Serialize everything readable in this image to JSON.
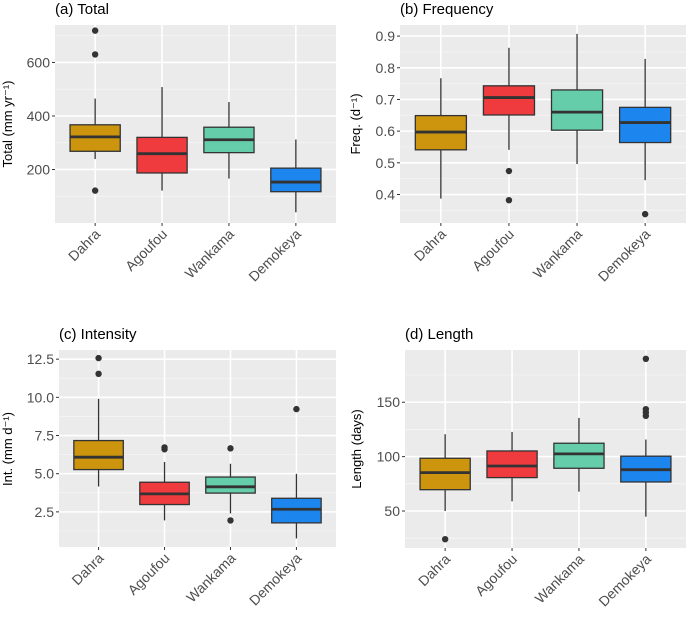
{
  "chart_data": [
    {
      "type": "boxplot",
      "title": "(a) Total",
      "xlabel": "",
      "ylabel": "Total (mm yr⁻¹)",
      "categories": [
        "Dahra",
        "Agoufou",
        "Wankama",
        "Demokeya"
      ],
      "colors": [
        "#CC950D",
        "#EF3B3E",
        "#66CDAA",
        "#1C86EE"
      ],
      "yticks": [
        200,
        400,
        600
      ],
      "ytick_labels": [
        "200",
        "400",
        "600"
      ],
      "ylim": [
        0,
        740
      ],
      "grid": true,
      "boxes": [
        {
          "category": "Dahra",
          "whisker_low": 239,
          "q1": 268,
          "median": 322,
          "q3": 367,
          "whisker_high": 465,
          "outliers": [
            719,
            630,
            121
          ]
        },
        {
          "category": "Agoufou",
          "whisker_low": 121,
          "q1": 187,
          "median": 259,
          "q3": 320,
          "whisker_high": 508,
          "outliers": []
        },
        {
          "category": "Wankama",
          "whisker_low": 166,
          "q1": 263,
          "median": 311,
          "q3": 358,
          "whisker_high": 452,
          "outliers": []
        },
        {
          "category": "Demokeya",
          "whisker_low": 40,
          "q1": 117,
          "median": 153,
          "q3": 205,
          "whisker_high": 312,
          "outliers": []
        }
      ]
    },
    {
      "type": "boxplot",
      "title": "(b) Frequency",
      "xlabel": "",
      "ylabel": "Freq. (d⁻¹)",
      "categories": [
        "Dahra",
        "Agoufou",
        "Wankama",
        "Demokeya"
      ],
      "colors": [
        "#CC950D",
        "#EF3B3E",
        "#66CDAA",
        "#1C86EE"
      ],
      "yticks": [
        0.4,
        0.5,
        0.6,
        0.7,
        0.8,
        0.9
      ],
      "ytick_labels": [
        "0.4",
        "0.5",
        "0.6",
        "0.7",
        "0.8",
        "0.9"
      ],
      "ylim": [
        0.31,
        0.935
      ],
      "grid": true,
      "boxes": [
        {
          "category": "Dahra",
          "whisker_low": 0.387,
          "q1": 0.541,
          "median": 0.597,
          "q3": 0.649,
          "whisker_high": 0.767,
          "outliers": []
        },
        {
          "category": "Agoufou",
          "whisker_low": 0.541,
          "q1": 0.651,
          "median": 0.706,
          "q3": 0.743,
          "whisker_high": 0.863,
          "outliers": [
            0.474,
            0.382
          ]
        },
        {
          "category": "Wankama",
          "whisker_low": 0.496,
          "q1": 0.603,
          "median": 0.66,
          "q3": 0.73,
          "whisker_high": 0.907,
          "outliers": []
        },
        {
          "category": "Demokeya",
          "whisker_low": 0.445,
          "q1": 0.564,
          "median": 0.627,
          "q3": 0.675,
          "whisker_high": 0.828,
          "outliers": [
            0.338
          ]
        }
      ]
    },
    {
      "type": "boxplot",
      "title": "(c) Intensity",
      "xlabel": "",
      "ylabel": "Int. (mm d⁻¹)",
      "categories": [
        "Dahra",
        "Agoufou",
        "Wankama",
        "Demokeya"
      ],
      "colors": [
        "#CC950D",
        "#EF3B3E",
        "#66CDAA",
        "#1C86EE"
      ],
      "yticks": [
        2.5,
        5.0,
        7.5,
        10.0,
        12.5
      ],
      "ytick_labels": [
        "2.5",
        "5.0",
        "7.5",
        "10.0",
        "12.5"
      ],
      "ylim": [
        0.2,
        13.1
      ],
      "grid": true,
      "boxes": [
        {
          "category": "Dahra",
          "whisker_low": 4.16,
          "q1": 5.27,
          "median": 6.08,
          "q3": 7.17,
          "whisker_high": 9.9,
          "outliers": [
            12.57,
            11.54
          ]
        },
        {
          "category": "Agoufou",
          "whisker_low": 1.94,
          "q1": 2.98,
          "median": 3.68,
          "q3": 4.44,
          "whisker_high": 5.77,
          "outliers": [
            6.72,
            6.6
          ]
        },
        {
          "category": "Wankama",
          "whisker_low": 2.4,
          "q1": 3.73,
          "median": 4.14,
          "q3": 4.78,
          "whisker_high": 5.65,
          "outliers": [
            6.66,
            1.94
          ]
        },
        {
          "category": "Demokeya",
          "whisker_low": 0.76,
          "q1": 1.78,
          "median": 2.67,
          "q3": 3.39,
          "whisker_high": 4.99,
          "outliers": [
            9.23
          ]
        }
      ]
    },
    {
      "type": "boxplot",
      "title": "(d) Length",
      "xlabel": "",
      "ylabel": "Length (days)",
      "categories": [
        "Dahra",
        "Agoufou",
        "Wankama",
        "Demokeya"
      ],
      "colors": [
        "#CC950D",
        "#EF3B3E",
        "#66CDAA",
        "#1C86EE"
      ],
      "yticks": [
        50,
        100,
        150
      ],
      "ytick_labels": [
        "50",
        "100",
        "150"
      ],
      "ylim": [
        16,
        198
      ],
      "grid": true,
      "boxes": [
        {
          "category": "Dahra",
          "whisker_low": 50.0,
          "q1": 69.6,
          "median": 85.3,
          "q3": 98.5,
          "whisker_high": 120.6,
          "outliers": [
            24.1
          ]
        },
        {
          "category": "Agoufou",
          "whisker_low": 58.9,
          "q1": 80.7,
          "median": 91.4,
          "q3": 105.2,
          "whisker_high": 122.7,
          "outliers": []
        },
        {
          "category": "Wankama",
          "whisker_low": 67.8,
          "q1": 89.3,
          "median": 102.5,
          "q3": 112.3,
          "whisker_high": 135.6,
          "outliers": []
        },
        {
          "category": "Demokeya",
          "whisker_low": 44.8,
          "q1": 76.7,
          "median": 88.0,
          "q3": 100.4,
          "whisker_high": 115.7,
          "outliers": [
            189.9,
            143.6,
            140.5,
            137.5
          ]
        }
      ]
    }
  ]
}
